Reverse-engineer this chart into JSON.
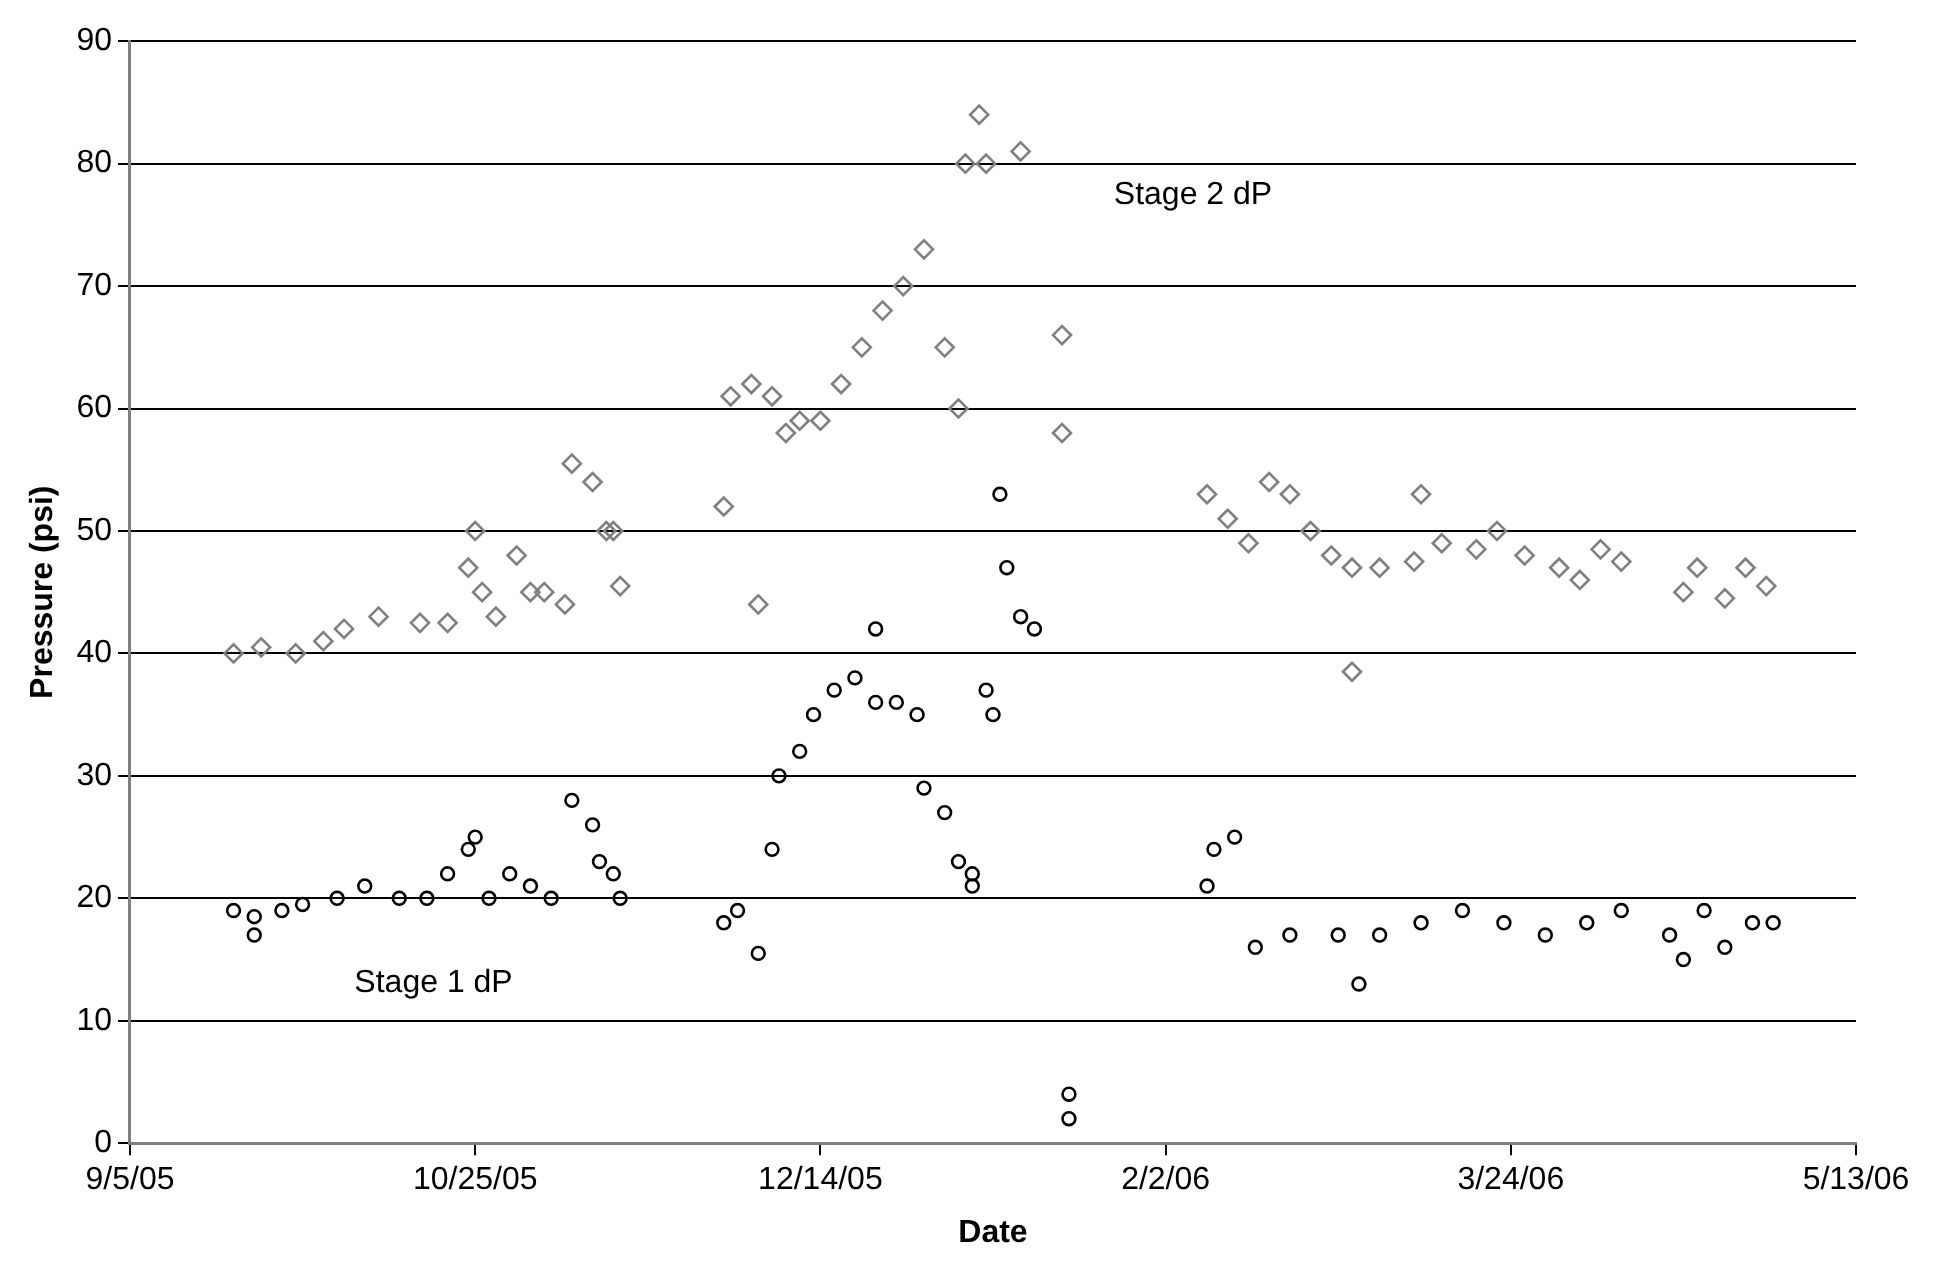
{
  "chart_data": {
    "type": "scatter",
    "xlabel": "Date",
    "ylabel": "Pressure (psi)",
    "xlim": [
      "2005-09-05",
      "2006-05-13"
    ],
    "xticks": [
      {
        "value": "2005-09-05",
        "label": "9/5/05"
      },
      {
        "value": "2005-10-25",
        "label": "10/25/05"
      },
      {
        "value": "2005-12-14",
        "label": "12/14/05"
      },
      {
        "value": "2006-02-02",
        "label": "2/2/06"
      },
      {
        "value": "2006-03-24",
        "label": "3/24/06"
      },
      {
        "value": "2006-05-13",
        "label": "5/13/06"
      }
    ],
    "ylim": [
      0,
      90
    ],
    "yticks": [
      0,
      10,
      20,
      30,
      40,
      50,
      60,
      70,
      80,
      90
    ],
    "grid": "y",
    "legend": false,
    "series": [
      {
        "name": "Stage 2 dP",
        "color": "#808080",
        "marker": "diamond",
        "x": [
          "2005-09-20",
          "2005-09-24",
          "2005-09-29",
          "2005-10-03",
          "2005-10-06",
          "2005-10-11",
          "2005-10-17",
          "2005-10-21",
          "2005-10-24",
          "2005-10-25",
          "2005-10-26",
          "2005-10-28",
          "2005-10-31",
          "2005-11-02",
          "2005-11-04",
          "2005-11-07",
          "2005-11-08",
          "2005-11-11",
          "2005-11-13",
          "2005-11-14",
          "2005-11-15",
          "2005-11-30",
          "2005-12-01",
          "2005-12-04",
          "2005-12-05",
          "2005-12-07",
          "2005-12-09",
          "2005-12-11",
          "2005-12-14",
          "2005-12-17",
          "2005-12-20",
          "2005-12-23",
          "2005-12-26",
          "2005-12-29",
          "2006-01-01",
          "2006-01-03",
          "2006-01-04",
          "2006-01-06",
          "2006-01-07",
          "2006-01-12",
          "2006-01-18",
          "2006-01-18",
          "2006-02-08",
          "2006-02-11",
          "2006-02-14",
          "2006-02-17",
          "2006-02-20",
          "2006-02-23",
          "2006-02-26",
          "2006-03-01",
          "2006-03-01",
          "2006-03-05",
          "2006-03-10",
          "2006-03-11",
          "2006-03-14",
          "2006-03-19",
          "2006-03-22",
          "2006-03-26",
          "2006-03-31",
          "2006-04-03",
          "2006-04-06",
          "2006-04-09",
          "2006-04-18",
          "2006-04-20",
          "2006-04-24",
          "2006-04-27",
          "2006-04-30"
        ],
        "values": [
          40,
          40.5,
          40,
          41,
          42,
          43,
          42.5,
          42.5,
          47,
          50,
          45,
          43,
          48,
          45,
          45,
          44,
          55.5,
          54,
          50,
          50,
          45.5,
          52,
          61,
          62,
          44,
          61,
          58,
          59,
          59,
          62,
          65,
          68,
          70,
          73,
          65,
          60,
          80,
          84,
          80,
          81,
          66,
          58,
          53,
          51,
          49,
          54,
          53,
          50,
          48,
          47,
          38.5,
          47,
          47.5,
          53,
          49,
          48.5,
          50,
          48,
          47,
          46,
          48.5,
          47.5,
          45,
          47,
          44.5,
          47,
          45.5
        ]
      },
      {
        "name": "Stage 1 dP",
        "color": "#000000",
        "marker": "circle",
        "x": [
          "2005-09-20",
          "2005-09-23",
          "2005-09-23",
          "2005-09-27",
          "2005-09-30",
          "2005-10-05",
          "2005-10-09",
          "2005-10-14",
          "2005-10-18",
          "2005-10-21",
          "2005-10-24",
          "2005-10-25",
          "2005-10-27",
          "2005-10-30",
          "2005-11-02",
          "2005-11-05",
          "2005-11-08",
          "2005-11-11",
          "2005-11-12",
          "2005-11-14",
          "2005-11-15",
          "2005-11-30",
          "2005-12-02",
          "2005-12-05",
          "2005-12-07",
          "2005-12-08",
          "2005-12-11",
          "2005-12-13",
          "2005-12-16",
          "2005-12-19",
          "2005-12-22",
          "2005-12-22",
          "2005-12-25",
          "2005-12-28",
          "2005-12-29",
          "2006-01-01",
          "2006-01-03",
          "2006-01-05",
          "2006-01-05",
          "2006-01-07",
          "2006-01-08",
          "2006-01-09",
          "2006-01-10",
          "2006-01-12",
          "2006-01-14",
          "2006-01-19",
          "2006-01-19",
          "2006-02-08",
          "2006-02-09",
          "2006-02-12",
          "2006-02-15",
          "2006-02-20",
          "2006-02-27",
          "2006-03-02",
          "2006-03-05",
          "2006-03-11",
          "2006-03-17",
          "2006-03-23",
          "2006-03-29",
          "2006-04-04",
          "2006-04-09",
          "2006-04-16",
          "2006-04-18",
          "2006-04-21",
          "2006-04-24",
          "2006-04-28",
          "2006-05-01"
        ],
        "values": [
          19,
          18.5,
          17,
          19,
          19.5,
          20,
          21,
          20,
          20,
          22,
          24,
          25,
          20,
          22,
          21,
          20,
          28,
          26,
          23,
          22,
          20,
          18,
          19,
          15.5,
          24,
          30,
          32,
          35,
          37,
          38,
          36,
          42,
          36,
          35,
          29,
          27,
          23,
          22,
          21,
          37,
          35,
          53,
          47,
          43,
          42,
          4,
          2,
          21,
          24,
          25,
          16,
          17,
          17,
          13,
          17,
          18,
          19,
          18,
          17,
          18,
          19,
          17,
          15,
          19,
          16,
          18,
          18
        ]
      }
    ]
  }
}
